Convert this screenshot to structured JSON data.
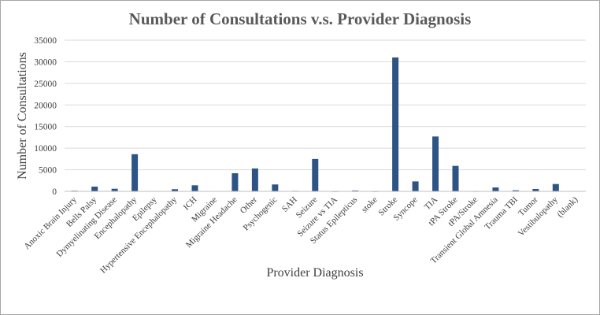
{
  "chart_data": {
    "type": "bar",
    "title": "Number of Consultations v.s. Provider Diagnosis",
    "xlabel": "Provider Diagnosis",
    "ylabel": "Number of Consultations",
    "ylim": [
      0,
      35000
    ],
    "yticks": [
      0,
      5000,
      10000,
      15000,
      20000,
      25000,
      30000,
      35000
    ],
    "grid": true,
    "legend": "none",
    "bar_color": "#2e5486",
    "categories": [
      "Anoxic Brain Injury",
      "Bells Palsy",
      "Dymyelinating Disease",
      "Encephalopathy",
      "Epilepsy",
      "Hypertensive Encephalopathy",
      "ICH",
      "Migraine",
      "Migraine Headache",
      "Other",
      "Psychogenic",
      "SAH",
      "Seizure",
      "Seizure vs TIA",
      "Status Epilepticus",
      "stoke",
      "Stroke",
      "Syncope",
      "TIA",
      "tPA Stroke",
      "tPA/Stroke",
      "Transient Global Amnesia",
      "Trauma TBI",
      "Tumor",
      "Vestibulopathy",
      "(blank)"
    ],
    "values": [
      150,
      1100,
      600,
      8600,
      50,
      500,
      1400,
      60,
      4200,
      5300,
      1600,
      120,
      7500,
      30,
      200,
      30,
      31000,
      2300,
      12700,
      5900,
      40,
      900,
      250,
      550,
      1700,
      50
    ]
  }
}
